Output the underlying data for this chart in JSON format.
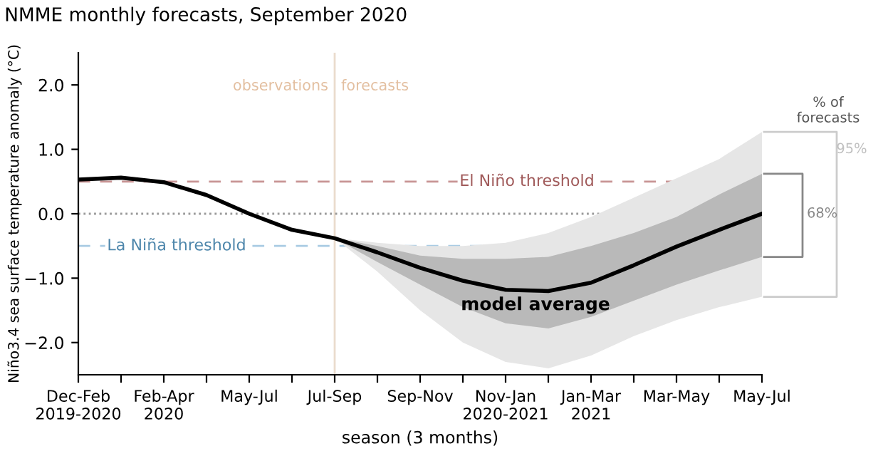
{
  "chart_data": {
    "type": "line",
    "title": "NMME monthly forecasts, September 2020",
    "xlabel": "season (3 months)",
    "ylabel": "Niño3.4 sea surface temperature anomaly (°C)",
    "categories": [
      "Dec-Feb\n2019-2020",
      null,
      "Feb-Apr\n2020",
      null,
      "May-Jul",
      null,
      "Jul-Sep",
      null,
      "Sep-Nov",
      null,
      "Nov-Jan\n2020-2021",
      null,
      "Jan-Mar\n2021",
      null,
      "Mar-May",
      null,
      "May-Jul"
    ],
    "series": [
      {
        "name": null,
        "color": "#e6e6e6",
        "values": [
          null,
          null,
          null,
          null,
          null,
          null,
          null,
          null,
          null,
          null,
          null,
          null,
          null,
          null,
          null,
          null,
          null
        ],
        "lower": [
          null,
          null,
          null,
          null,
          null,
          null,
          -0.38,
          -0.9,
          -1.5,
          -2.0,
          -2.3,
          -2.4,
          -2.2,
          -1.9,
          -1.65,
          -1.45,
          -1.29
        ],
        "upper": [
          null,
          null,
          null,
          null,
          null,
          null,
          -0.38,
          -0.45,
          -0.5,
          -0.5,
          -0.45,
          -0.3,
          -0.05,
          0.25,
          0.55,
          0.85,
          1.27
        ]
      },
      {
        "name": null,
        "color": "#b9b9b9",
        "values": [
          null,
          null,
          null,
          null,
          null,
          null,
          null,
          null,
          null,
          null,
          null,
          null,
          null,
          null,
          null,
          null,
          null
        ],
        "lower": [
          null,
          null,
          null,
          null,
          null,
          null,
          -0.38,
          -0.75,
          -1.1,
          -1.45,
          -1.7,
          -1.78,
          -1.6,
          -1.35,
          -1.1,
          -0.88,
          -0.67
        ],
        "upper": [
          null,
          null,
          null,
          null,
          null,
          null,
          -0.38,
          -0.5,
          -0.65,
          -0.7,
          -0.7,
          -0.67,
          -0.5,
          -0.3,
          -0.05,
          0.3,
          0.62
        ]
      },
      {
        "name": "model average",
        "color": "#000000",
        "values": [
          0.53,
          0.56,
          0.49,
          0.29,
          0.0,
          -0.25,
          -0.38,
          -0.6,
          -0.84,
          -1.04,
          -1.18,
          -1.2,
          -1.07,
          -0.8,
          -0.51,
          -0.25,
          0.0
        ]
      }
    ],
    "ylim": [
      -2.5,
      2.5
    ],
    "yticks": [
      {
        "value": 2,
        "label": "2.0"
      },
      {
        "value": 1,
        "label": "1.0"
      },
      {
        "value": 0,
        "label": "0.0"
      },
      {
        "value": -1,
        "label": "−1.0"
      },
      {
        "value": -2,
        "label": "−2.0"
      }
    ],
    "ref_lines": [
      {
        "axis": "y",
        "value": 0.5,
        "label": "El Niño threshold",
        "color": "#c89494",
        "line_style": "dashed"
      },
      {
        "axis": "y",
        "value": -0.5,
        "label": "La Niña threshold",
        "color": "#a9cbe3",
        "line_style": "dashed"
      },
      {
        "axis": "y",
        "value": 0,
        "label": null,
        "color": "#9a9a9a",
        "line_style": "dotted"
      },
      {
        "axis": "x",
        "value": "Jul-Sep",
        "label": null,
        "color": "#eadccd",
        "line_style": "solid"
      }
    ],
    "annotations": [
      "observations",
      "forecasts",
      "% of\nforecasts",
      "95%",
      "68%"
    ],
    "grid": false,
    "legend": false,
    "line_style": "solid",
    "marker": "none"
  }
}
